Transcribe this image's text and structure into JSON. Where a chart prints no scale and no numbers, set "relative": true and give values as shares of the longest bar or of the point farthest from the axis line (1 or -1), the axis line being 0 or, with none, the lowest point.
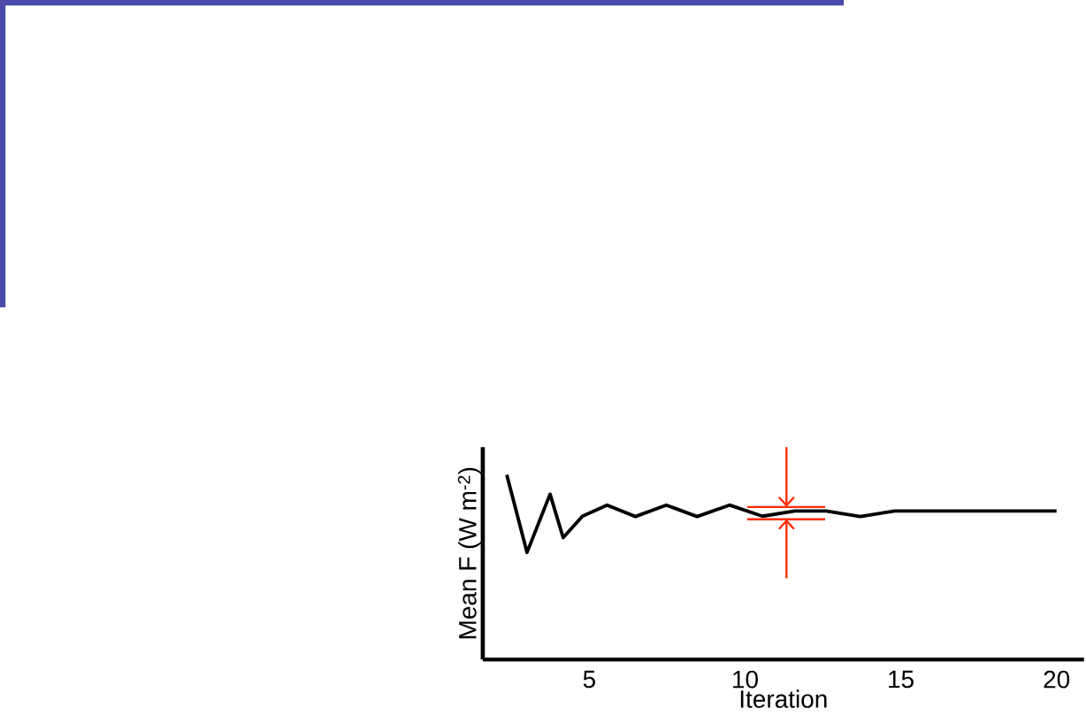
{
  "chart_data": {
    "type": "line",
    "relative": true,
    "xlabel": "Iteration",
    "ylabel": "Mean F (W m$^{-2}$)",
    "xlim": [
      1.58,
      20.88
    ],
    "xticks": [
      5,
      10,
      15,
      20
    ],
    "color": "#000000",
    "x": [
      2.35,
      3.0,
      3.74,
      4.16,
      4.78,
      5.57,
      6.48,
      7.47,
      8.46,
      9.5,
      10.56,
      11.6,
      12.6,
      13.7,
      14.8,
      20
    ],
    "values": [
      1.0,
      0.58,
      0.895,
      0.66,
      0.776,
      0.836,
      0.774,
      0.836,
      0.774,
      0.836,
      0.776,
      0.804,
      0.804,
      0.774,
      0.804,
      0.804
    ]
  }
}
